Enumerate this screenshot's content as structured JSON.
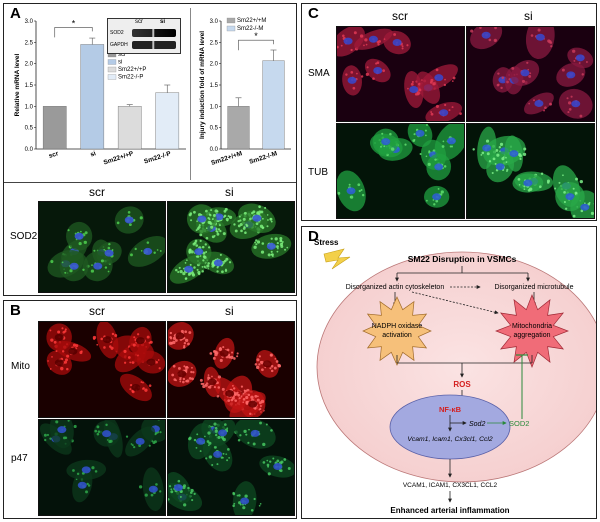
{
  "panels": {
    "a": "A",
    "b": "B",
    "c": "C",
    "d": "D"
  },
  "panel_a": {
    "blot": {
      "cols": [
        "scr",
        "si"
      ],
      "rows": [
        "SOD2",
        "GAPDH"
      ]
    },
    "micro_cols": [
      "scr",
      "si"
    ],
    "micro_row": "SOD2"
  },
  "panel_b": {
    "cols": [
      "scr",
      "si"
    ],
    "rows": [
      "Mito",
      "p47"
    ]
  },
  "panel_c": {
    "cols": [
      "scr",
      "si"
    ],
    "rows": [
      "SMA",
      "TUB"
    ]
  },
  "panel_d": {
    "stress": "Stress",
    "title": "SM22 Disruption in VSMCs",
    "actin": "Disorganized actin cytoskeleton",
    "microtubule": "Disorganized microtubule",
    "nadph": [
      "NADPH oxidase",
      "activation"
    ],
    "mito": [
      "Mitochondria",
      "aggregation"
    ],
    "ros": "ROS",
    "nfkb": "NF-κB",
    "sod2_gene": "Sod2",
    "sod2_protein": "SOD2",
    "genes": "Vcam1, Icam1, Cx3cl1, Ccl2",
    "proteins": "VCAM1, ICAM1, CX3CL1, CCL2",
    "outcome": "Enhanced arterial inflammation"
  },
  "chart_data": [
    {
      "type": "bar",
      "ylabel": "Relative mRNA level",
      "categories": [
        "scr",
        "si",
        "Sm22+/+P",
        "Sm22-/-P"
      ],
      "values": [
        1.0,
        2.45,
        1.0,
        1.32
      ],
      "errors": [
        0,
        0.15,
        0.04,
        0.18
      ],
      "yticks": [
        "0.0",
        "0.5",
        "1.0",
        "1.5",
        "2.0",
        "2.5",
        "3.0"
      ],
      "ylim": [
        0,
        3
      ],
      "legend": [
        "scr",
        "si",
        "Sm22+/+P",
        "Sm22-/-P"
      ],
      "significance": "*",
      "colors": [
        "#9a9a9a",
        "#b4cbe6",
        "#dcdcdc",
        "#e2ecf7"
      ]
    },
    {
      "type": "bar",
      "ylabel": "Injury induction fold of mRNA level",
      "categories": [
        "Sm22+/+M",
        "Sm22-/-M"
      ],
      "values": [
        1.0,
        2.07
      ],
      "errors": [
        0.2,
        0.25
      ],
      "yticks": [
        "0.0",
        "0.5",
        "1.0",
        "1.5",
        "2.0",
        "2.5",
        "3.0"
      ],
      "ylim": [
        0,
        3
      ],
      "legend": [
        "Sm22+/+M",
        "Sm22-/-M"
      ],
      "significance": "*",
      "colors": [
        "#a9a9a9",
        "#c6d9ee"
      ]
    }
  ]
}
